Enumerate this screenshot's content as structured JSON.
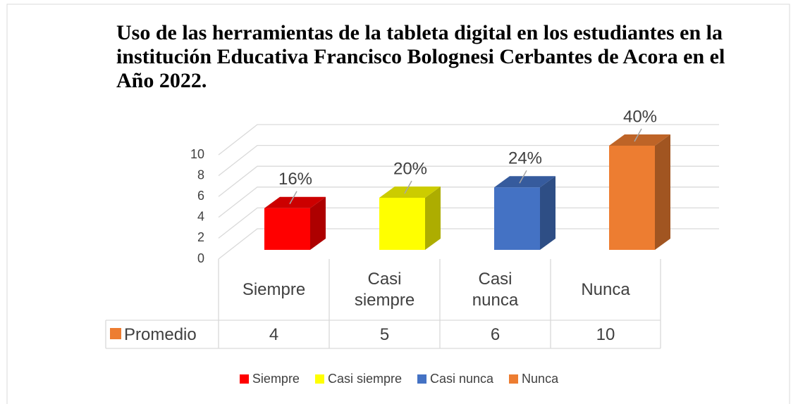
{
  "chart_data": {
    "type": "bar",
    "title": "Uso de las herramientas de la tableta digital en los estudiantes en la institución Educativa Francisco Bolognesi Cerbantes de Acora en el Año 2022.",
    "categories": [
      "Siempre",
      "Casi siempre",
      "Casi nunca",
      "Nunca"
    ],
    "series": [
      {
        "name": "Promedio",
        "color": "#ed7d31",
        "values": [
          4,
          5,
          6,
          10
        ],
        "value_labels": [
          "16%",
          "20%",
          "24%",
          "40%"
        ],
        "colors": [
          "#ff0000",
          "#ffff00",
          "#4472c4",
          "#ed7d31"
        ]
      }
    ],
    "ylim": [
      0,
      10
    ],
    "yticks": [
      0,
      2,
      4,
      6,
      8,
      10
    ],
    "grid": true,
    "legend": "bottom",
    "data_table": true
  }
}
